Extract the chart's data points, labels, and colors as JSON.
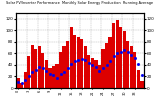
{
  "title": "Solar PV/Inverter Performance  Monthly Solar Energy Production  Running Average",
  "bar_values": [
    18,
    8,
    28,
    55,
    75,
    68,
    72,
    60,
    48,
    35,
    38,
    42,
    62,
    72,
    82,
    105,
    92,
    88,
    85,
    72,
    58,
    52,
    48,
    40,
    68,
    78,
    88,
    112,
    118,
    105,
    98,
    82,
    72,
    62,
    32,
    12
  ],
  "avg_values": [
    10,
    8,
    14,
    20,
    28,
    32,
    36,
    34,
    30,
    25,
    22,
    18,
    24,
    28,
    34,
    42,
    46,
    48,
    50,
    48,
    44,
    40,
    36,
    30,
    34,
    40,
    46,
    55,
    60,
    62,
    65,
    62,
    58,
    52,
    42,
    22
  ],
  "bar_color": "#dd0000",
  "avg_color": "#0000ee",
  "background": "#ffffff",
  "grid_color": "#888888",
  "ylim": [
    0,
    130
  ],
  "y_ticks": [
    0,
    20,
    40,
    60,
    80,
    100,
    120
  ],
  "y_tick_labels": [
    "0",
    "20",
    "40",
    "60",
    "80",
    "100",
    "120"
  ],
  "n_bars": 36,
  "title_fontsize": 2.5
}
